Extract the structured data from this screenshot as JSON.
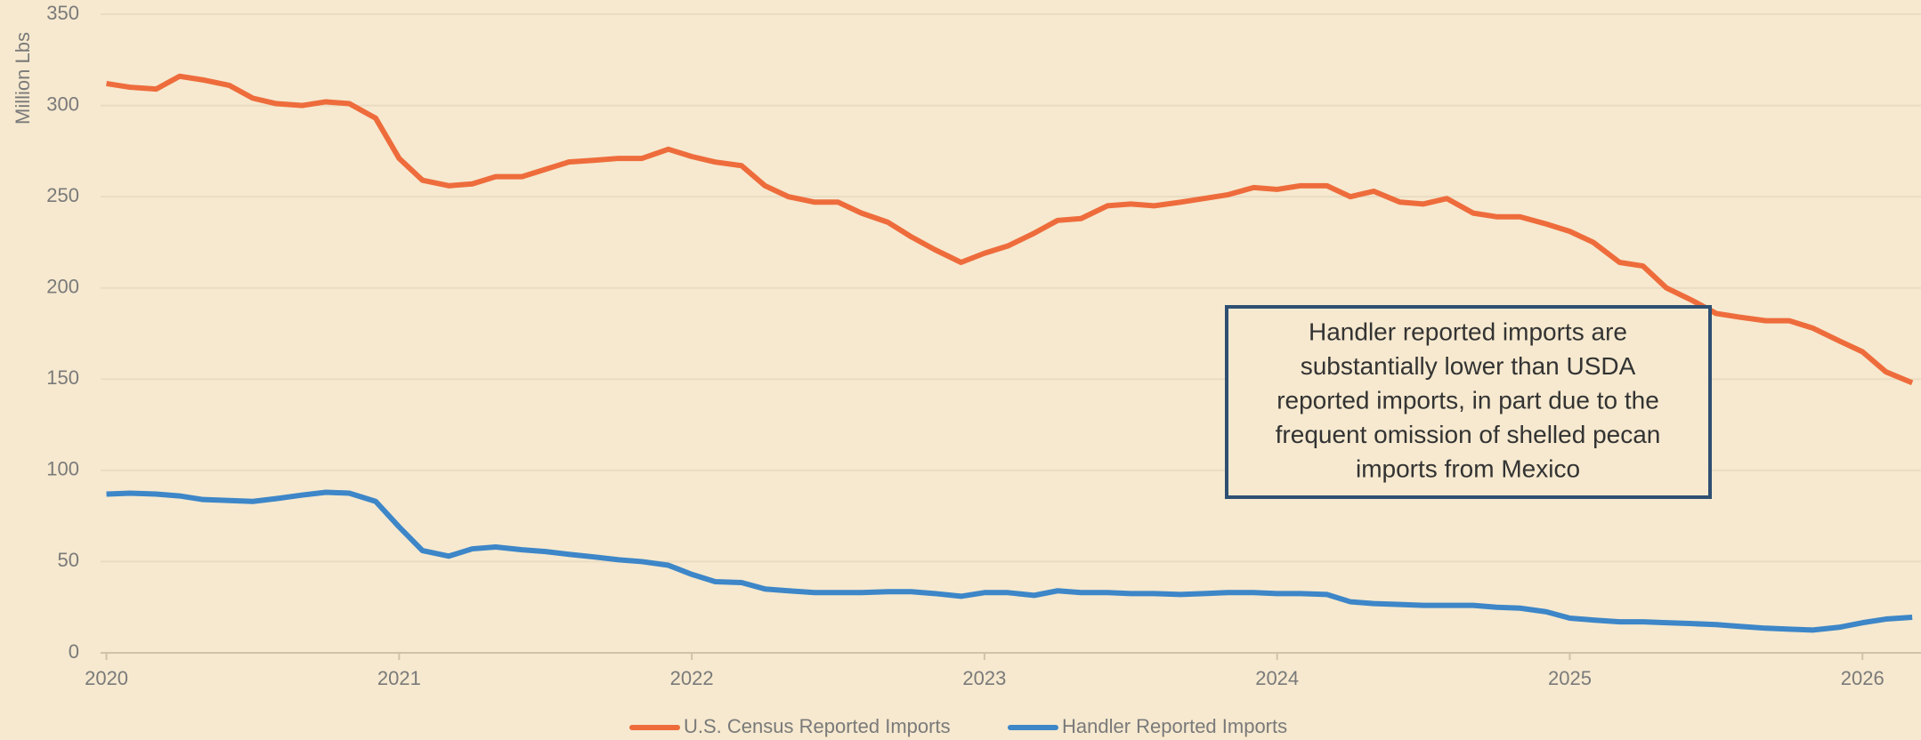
{
  "chart_data": {
    "type": "line",
    "y_label": "Million Lbs",
    "x": [
      2020,
      2020.08,
      2020.17,
      2020.25,
      2020.33,
      2020.42,
      2020.5,
      2020.58,
      2020.67,
      2020.75,
      2020.83,
      2020.92,
      2021,
      2021.08,
      2021.17,
      2021.25,
      2021.33,
      2021.42,
      2021.5,
      2021.58,
      2021.67,
      2021.75,
      2021.83,
      2021.92,
      2022,
      2022.08,
      2022.17,
      2022.25,
      2022.33,
      2022.42,
      2022.5,
      2022.58,
      2022.67,
      2022.75,
      2022.83,
      2022.92,
      2023,
      2023.08,
      2023.17,
      2023.25,
      2023.33,
      2023.42,
      2023.5,
      2023.58,
      2023.67,
      2023.75,
      2023.83,
      2023.92,
      2024,
      2024.08,
      2024.17,
      2024.25,
      2024.33,
      2024.42,
      2024.5,
      2024.58,
      2024.67,
      2024.75,
      2024.83,
      2024.92,
      2025,
      2025.08,
      2025.17,
      2025.25,
      2025.33,
      2025.42,
      2025.5,
      2025.58,
      2025.67,
      2025.75,
      2025.83,
      2025.92,
      2026,
      2026.08,
      2026.17
    ],
    "series": [
      {
        "name": "U.S. Census Reported Imports",
        "color": "#ee6c3c",
        "values": [
          312,
          310,
          309,
          316,
          314,
          311,
          304,
          301,
          300,
          302,
          301,
          293,
          271,
          259,
          256,
          257,
          261,
          261,
          265,
          269,
          270,
          271,
          271,
          276,
          272,
          269,
          267,
          256,
          250,
          247,
          247,
          241,
          236,
          228,
          221,
          214,
          219,
          223,
          230,
          237,
          238,
          245,
          246,
          245,
          247,
          249,
          251,
          255,
          254,
          256,
          256,
          250,
          253,
          247,
          246,
          249,
          241,
          239,
          239,
          235,
          231,
          225,
          214,
          212,
          200,
          193,
          186,
          184,
          182,
          182,
          178,
          171,
          165,
          154,
          148
        ]
      },
      {
        "name": "Handler Reported Imports",
        "color": "#3d86c8",
        "values": [
          87,
          87.5,
          87,
          86,
          84,
          83.5,
          83,
          84.5,
          86.5,
          88,
          87.5,
          83,
          69,
          56,
          53,
          57,
          58,
          56.5,
          55.5,
          54,
          52.5,
          51,
          50,
          48,
          43,
          39,
          38.5,
          35,
          34,
          33,
          33,
          33,
          33.5,
          33.5,
          32.5,
          31,
          33,
          33,
          31.5,
          34,
          33,
          33,
          32.5,
          32.5,
          32,
          32.5,
          33,
          33,
          32.5,
          32.5,
          32,
          28,
          27,
          26.5,
          26,
          26,
          26,
          25,
          24.5,
          22.5,
          19,
          18,
          17,
          17,
          16.5,
          16,
          15.5,
          14.5,
          13.5,
          13,
          12.5,
          14,
          16.5,
          18.5,
          19.5
        ]
      }
    ],
    "xlim": [
      2019.98,
      2026.2
    ],
    "xticks": [
      2020,
      2021,
      2022,
      2023,
      2024,
      2025,
      2026
    ],
    "ylim": [
      0,
      350
    ],
    "yticks": [
      0,
      50,
      100,
      150,
      200,
      250,
      300,
      350
    ],
    "grid": true,
    "legend": "bottom",
    "annotation": {
      "lines": [
        "Handler reported imports are",
        "substantially lower than USDA",
        "reported imports, in part due to the",
        "frequent omission of shelled pecan",
        "imports from Mexico"
      ]
    }
  }
}
